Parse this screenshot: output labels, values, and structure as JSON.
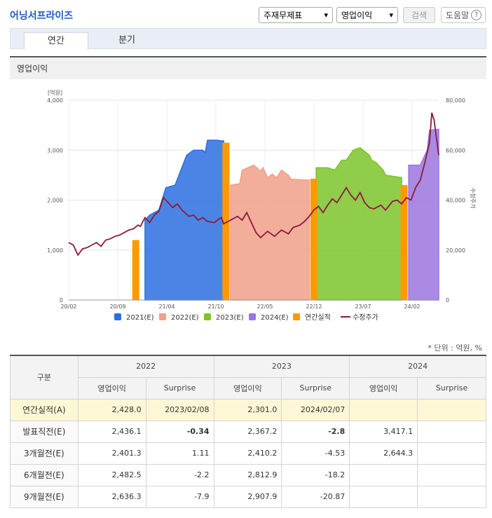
{
  "header": {
    "title": "어닝서프라이즈",
    "select_statement": "주재무제표",
    "select_metric": "영업이익",
    "search_label": "검색",
    "help_label": "도움말",
    "help_icon_glyph": "?"
  },
  "tabs": [
    {
      "label": "연간",
      "active": true
    },
    {
      "label": "분기",
      "active": false
    }
  ],
  "section_title": "영업이익",
  "chart_data": {
    "type": "area",
    "y_left_label": "[억원]",
    "y_right_label": "수정주가",
    "y_left_ticks": [
      "4,000",
      "3,000",
      "2,000",
      "1,000",
      "0"
    ],
    "y_right_ticks": [
      "80,000",
      "60,000",
      "40,000",
      "20,000",
      "0"
    ],
    "x_ticks": [
      "20/02",
      "20/09",
      "21/04",
      "21/10",
      "22/05",
      "22/12",
      "23/07",
      "24/02"
    ],
    "ylim_left": [
      0,
      4000
    ],
    "ylim_right": [
      0,
      80000
    ],
    "legend": [
      {
        "label": "2021(E)",
        "color": "#2d6ee0"
      },
      {
        "label": "2022(E)",
        "color": "#f0a08a"
      },
      {
        "label": "2023(E)",
        "color": "#7dc42a"
      },
      {
        "label": "2024(E)",
        "color": "#9b76dd"
      },
      {
        "label": "연간실적",
        "color": "#ff9900"
      },
      {
        "label": "수정주가",
        "color": "#8c1a3a"
      }
    ],
    "estimate_series": [
      {
        "name": "2021(E)",
        "color": "#2d6ee0",
        "points": [
          [
            1.65,
            1600
          ],
          [
            1.75,
            1700
          ],
          [
            1.95,
            1800
          ],
          [
            2.1,
            2250
          ],
          [
            2.3,
            2300
          ],
          [
            2.55,
            2900
          ],
          [
            2.7,
            3000
          ],
          [
            2.9,
            3000
          ],
          [
            2.95,
            2950
          ],
          [
            3.0,
            3200
          ],
          [
            3.2,
            3200
          ],
          [
            3.35,
            3180
          ],
          [
            3.35,
            3200
          ]
        ]
      },
      {
        "name": "2022(E)",
        "color": "#f0a08a",
        "points": [
          [
            3.5,
            2300
          ],
          [
            3.7,
            2330
          ],
          [
            3.75,
            2600
          ],
          [
            4.0,
            2700
          ],
          [
            4.15,
            2580
          ],
          [
            4.2,
            2650
          ],
          [
            4.3,
            2450
          ],
          [
            4.4,
            2520
          ],
          [
            4.5,
            2450
          ],
          [
            4.6,
            2600
          ],
          [
            4.75,
            2500
          ],
          [
            4.8,
            2420
          ],
          [
            5.2,
            2400
          ]
        ]
      },
      {
        "name": "2023(E)",
        "color": "#7dc42a",
        "points": [
          [
            5.35,
            2650
          ],
          [
            5.6,
            2650
          ],
          [
            5.75,
            2600
          ],
          [
            5.9,
            2800
          ],
          [
            6.0,
            2800
          ],
          [
            6.15,
            3000
          ],
          [
            6.3,
            3050
          ],
          [
            6.5,
            2900
          ],
          [
            6.55,
            2800
          ],
          [
            6.65,
            2750
          ],
          [
            6.8,
            2600
          ],
          [
            6.85,
            2500
          ],
          [
            7.2,
            2450
          ],
          [
            7.2,
            2300
          ]
        ]
      },
      {
        "name": "2024(E)",
        "color": "#9b76dd",
        "points": [
          [
            7.35,
            2700
          ],
          [
            7.6,
            2700
          ],
          [
            7.65,
            2800
          ],
          [
            7.75,
            3000
          ],
          [
            7.8,
            3400
          ],
          [
            8.0,
            3420
          ]
        ]
      }
    ],
    "annual_actual_bars": [
      {
        "year": "2020",
        "x": 1.45,
        "value": 1200
      },
      {
        "year": "2021",
        "x": 3.4,
        "value": 3150
      },
      {
        "year": "2022",
        "x": 5.3,
        "value": 2428
      },
      {
        "year": "2023",
        "x": 7.25,
        "value": 2301
      }
    ],
    "price_series": {
      "name": "수정주가",
      "points": [
        [
          0,
          23000
        ],
        [
          0.1,
          22000
        ],
        [
          0.2,
          18000
        ],
        [
          0.3,
          20500
        ],
        [
          0.4,
          21000
        ],
        [
          0.5,
          22000
        ],
        [
          0.6,
          23000
        ],
        [
          0.7,
          21500
        ],
        [
          0.8,
          24000
        ],
        [
          0.9,
          24500
        ],
        [
          1.0,
          25500
        ],
        [
          1.1,
          26000
        ],
        [
          1.2,
          27000
        ],
        [
          1.3,
          28000
        ],
        [
          1.4,
          28500
        ],
        [
          1.5,
          30000
        ],
        [
          1.55,
          29500
        ],
        [
          1.65,
          33000
        ],
        [
          1.75,
          31000
        ],
        [
          1.85,
          34000
        ],
        [
          1.95,
          35500
        ],
        [
          2.05,
          41000
        ],
        [
          2.15,
          39000
        ],
        [
          2.25,
          37000
        ],
        [
          2.35,
          38500
        ],
        [
          2.45,
          36000
        ],
        [
          2.6,
          33500
        ],
        [
          2.7,
          34000
        ],
        [
          2.8,
          32000
        ],
        [
          2.9,
          33000
        ],
        [
          3.0,
          31500
        ],
        [
          3.15,
          31000
        ],
        [
          3.25,
          32500
        ],
        [
          3.3,
          33000
        ],
        [
          3.35,
          30500
        ],
        [
          3.45,
          31500
        ],
        [
          3.55,
          32500
        ],
        [
          3.65,
          33500
        ],
        [
          3.75,
          32000
        ],
        [
          3.85,
          35000
        ],
        [
          3.95,
          31000
        ],
        [
          4.05,
          27000
        ],
        [
          4.15,
          25000
        ],
        [
          4.3,
          27500
        ],
        [
          4.45,
          25500
        ],
        [
          4.6,
          28000
        ],
        [
          4.75,
          26500
        ],
        [
          4.85,
          29000
        ],
        [
          5.0,
          30000
        ],
        [
          5.1,
          31500
        ],
        [
          5.2,
          33500
        ],
        [
          5.3,
          36000
        ],
        [
          5.4,
          37500
        ],
        [
          5.5,
          35000
        ],
        [
          5.6,
          38000
        ],
        [
          5.7,
          40500
        ],
        [
          5.8,
          39000
        ],
        [
          5.9,
          42000
        ],
        [
          6.0,
          45000
        ],
        [
          6.1,
          42000
        ],
        [
          6.2,
          40000
        ],
        [
          6.3,
          43000
        ],
        [
          6.4,
          39000
        ],
        [
          6.5,
          37000
        ],
        [
          6.6,
          36500
        ],
        [
          6.75,
          38000
        ],
        [
          6.85,
          36000
        ],
        [
          7.0,
          39500
        ],
        [
          7.1,
          40000
        ],
        [
          7.2,
          38500
        ],
        [
          7.3,
          41000
        ],
        [
          7.4,
          40000
        ],
        [
          7.5,
          45000
        ],
        [
          7.6,
          48000
        ],
        [
          7.7,
          55000
        ],
        [
          7.8,
          63000
        ],
        [
          7.85,
          75000
        ],
        [
          7.9,
          72000
        ],
        [
          8.0,
          58000
        ]
      ]
    }
  },
  "unit_note": "* 단위 : 억원, %",
  "table": {
    "group_header": "구분",
    "years": [
      "2022",
      "2023",
      "2024"
    ],
    "subheaders": [
      "영업이익",
      "Surprise",
      "영업이익",
      "Surprise",
      "영업이익",
      "Surprise"
    ],
    "rows": [
      {
        "label": "연간실적(A)",
        "highlight": true,
        "cells": [
          "2,428.0",
          "2023/02/08",
          "2,301.0",
          "2024/02/07",
          "",
          ""
        ]
      },
      {
        "label": "발표직전(E)",
        "highlight": false,
        "cells": [
          "2,436.1",
          "-0.34",
          "2,367.2",
          "-2.8",
          "3,417.1",
          ""
        ]
      },
      {
        "label": "3개월전(E)",
        "highlight": false,
        "cells": [
          "2,401.3",
          "1.11",
          "2,410.2",
          "-4.53",
          "2,644.3",
          ""
        ]
      },
      {
        "label": "6개월전(E)",
        "highlight": false,
        "cells": [
          "2,482.5",
          "-2.2",
          "2,812.9",
          "-18.2",
          "",
          ""
        ]
      },
      {
        "label": "9개월전(E)",
        "highlight": false,
        "cells": [
          "2,636.3",
          "-7.9",
          "2,907.9",
          "-20.87",
          "",
          ""
        ]
      }
    ]
  }
}
